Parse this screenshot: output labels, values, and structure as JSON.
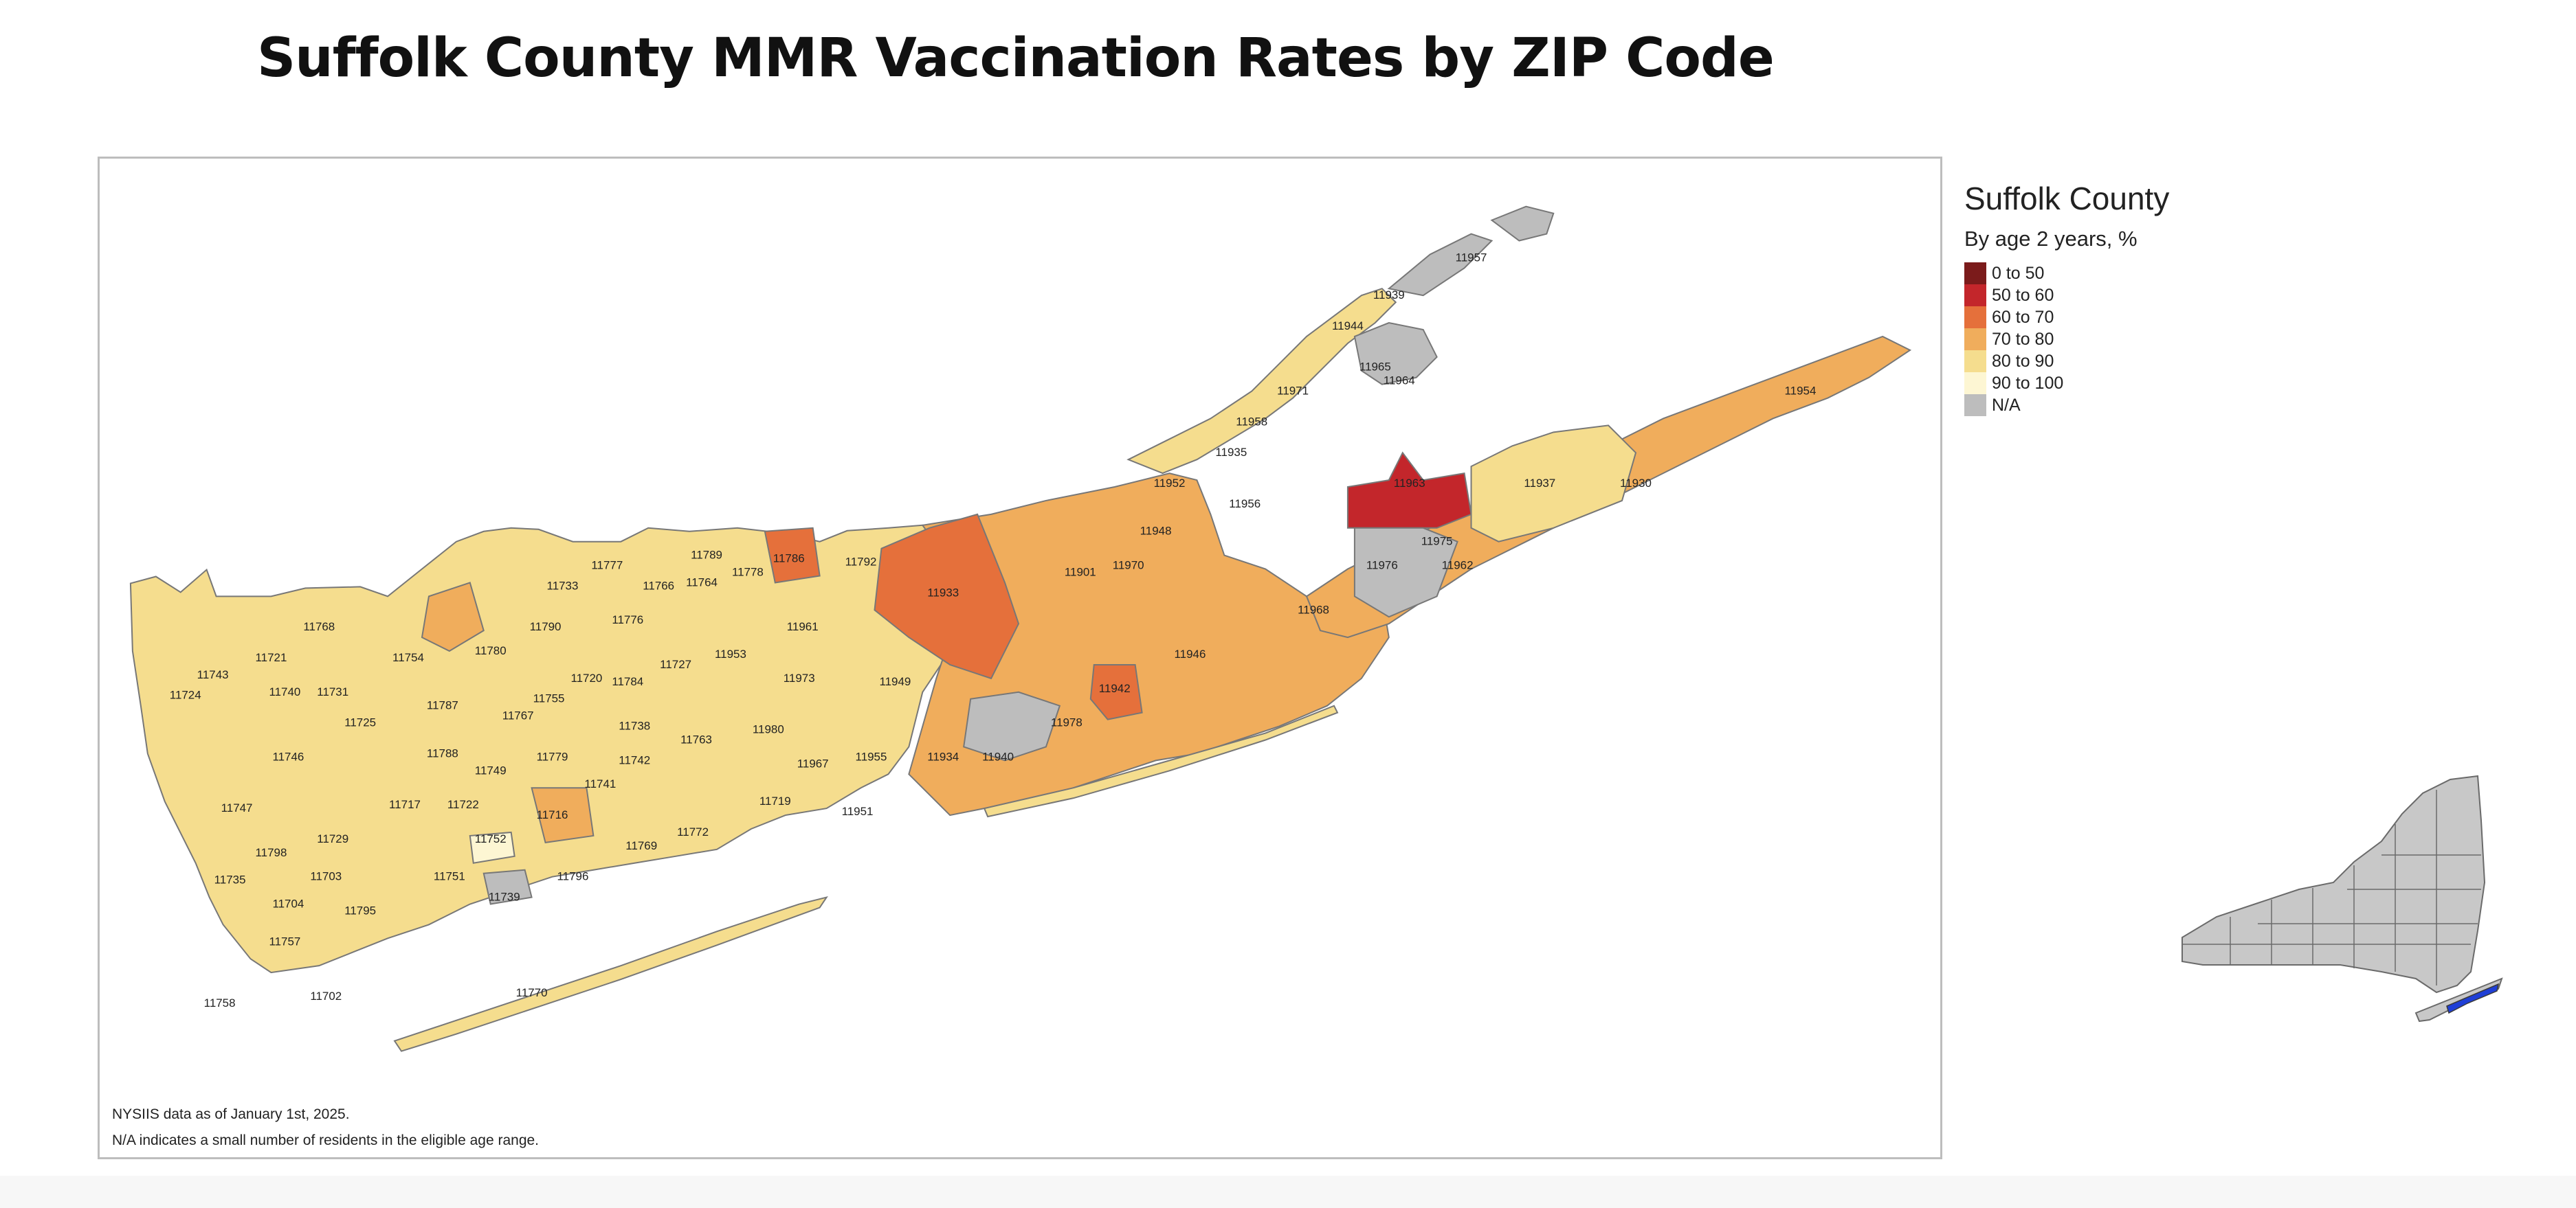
{
  "title": "Suffolk County MMR Vaccination Rates by ZIP Code",
  "legend": {
    "title": "Suffolk County",
    "subtitle": "By age 2 years, %",
    "items": [
      {
        "label": "0 to 50",
        "color": "#7b1b1b"
      },
      {
        "label": "50 to 60",
        "color": "#c3262b"
      },
      {
        "label": "60 to 70",
        "color": "#e5703b"
      },
      {
        "label": "70 to 80",
        "color": "#f0ad5c"
      },
      {
        "label": "80 to 90",
        "color": "#f5dd8e"
      },
      {
        "label": "90 to 100",
        "color": "#fdf6d3"
      },
      {
        "label": "N/A",
        "color": "#bdbdbd"
      }
    ]
  },
  "notes": {
    "data_date": "NYSIIS data as of January 1st, 2025.",
    "na_note": "N/A indicates a small number of residents in the eligible age range."
  },
  "inset": {
    "highlight_color": "#1f3fd6"
  },
  "zip_labels": [
    {
      "zip": "11957",
      "bin": "N/A"
    },
    {
      "zip": "11939",
      "bin": "N/A"
    },
    {
      "zip": "11944",
      "bin": "70 to 80"
    },
    {
      "zip": "11965",
      "bin": "N/A"
    },
    {
      "zip": "11964",
      "bin": "N/A"
    },
    {
      "zip": "11971",
      "bin": "70 to 80"
    },
    {
      "zip": "11958",
      "bin": "N/A"
    },
    {
      "zip": "11954",
      "bin": "70 to 80"
    },
    {
      "zip": "11935",
      "bin": "80 to 90"
    },
    {
      "zip": "11952",
      "bin": "80 to 90"
    },
    {
      "zip": "11956",
      "bin": "N/A"
    },
    {
      "zip": "11948",
      "bin": "N/A"
    },
    {
      "zip": "11937",
      "bin": "80 to 90"
    },
    {
      "zip": "11930",
      "bin": "N/A"
    },
    {
      "zip": "11963",
      "bin": "50 to 60"
    },
    {
      "zip": "11976",
      "bin": "N/A"
    },
    {
      "zip": "11962",
      "bin": "N/A"
    },
    {
      "zip": "11975",
      "bin": "N/A"
    },
    {
      "zip": "11968",
      "bin": "70 to 80"
    },
    {
      "zip": "11901",
      "bin": "70 to 80"
    },
    {
      "zip": "11970",
      "bin": "N/A"
    },
    {
      "zip": "11933",
      "bin": "60 to 70"
    },
    {
      "zip": "11946",
      "bin": "70 to 80"
    },
    {
      "zip": "11942",
      "bin": "60 to 70"
    },
    {
      "zip": "11978",
      "bin": "70 to 80"
    },
    {
      "zip": "11940",
      "bin": "N/A"
    },
    {
      "zip": "11949",
      "bin": "70 to 80"
    },
    {
      "zip": "11789",
      "bin": "80 to 90"
    },
    {
      "zip": "11786",
      "bin": "60 to 70"
    },
    {
      "zip": "11792",
      "bin": "80 to 90"
    },
    {
      "zip": "11778",
      "bin": "80 to 90"
    },
    {
      "zip": "11777",
      "bin": "70 to 80"
    },
    {
      "zip": "11766",
      "bin": "80 to 90"
    },
    {
      "zip": "11764",
      "bin": "80 to 90"
    },
    {
      "zip": "11733",
      "bin": "80 to 90"
    },
    {
      "zip": "11961",
      "bin": "80 to 90"
    },
    {
      "zip": "11953",
      "bin": "70 to 80"
    },
    {
      "zip": "11973",
      "bin": "N/A"
    },
    {
      "zip": "11980",
      "bin": "70 to 80"
    },
    {
      "zip": "11967",
      "bin": "70 to 80"
    },
    {
      "zip": "11955",
      "bin": "70 to 80"
    },
    {
      "zip": "11934",
      "bin": "80 to 90"
    },
    {
      "zip": "11719",
      "bin": "70 to 80"
    },
    {
      "zip": "11951",
      "bin": "70 to 80"
    },
    {
      "zip": "11772",
      "bin": "80 to 90"
    },
    {
      "zip": "11763",
      "bin": "80 to 90"
    },
    {
      "zip": "11742",
      "bin": "80 to 90"
    },
    {
      "zip": "11741",
      "bin": "80 to 90"
    },
    {
      "zip": "11738",
      "bin": "80 to 90"
    },
    {
      "zip": "11784",
      "bin": "80 to 90"
    },
    {
      "zip": "11727",
      "bin": "80 to 90"
    },
    {
      "zip": "11720",
      "bin": "80 to 90"
    },
    {
      "zip": "11755",
      "bin": "80 to 90"
    },
    {
      "zip": "11776",
      "bin": "80 to 90"
    },
    {
      "zip": "11790",
      "bin": "80 to 90"
    },
    {
      "zip": "11754",
      "bin": "80 to 90"
    },
    {
      "zip": "11780",
      "bin": "70 to 80"
    },
    {
      "zip": "11768",
      "bin": "80 to 90"
    },
    {
      "zip": "11787",
      "bin": "80 to 90"
    },
    {
      "zip": "11767",
      "bin": "80 to 90"
    },
    {
      "zip": "11788",
      "bin": "80 to 90"
    },
    {
      "zip": "11749",
      "bin": "80 to 90"
    },
    {
      "zip": "11779",
      "bin": "80 to 90"
    },
    {
      "zip": "11716",
      "bin": "70 to 80"
    },
    {
      "zip": "11769",
      "bin": "70 to 80"
    },
    {
      "zip": "11796",
      "bin": "80 to 90"
    },
    {
      "zip": "11752",
      "bin": "90 to 100"
    },
    {
      "zip": "11739",
      "bin": "N/A"
    },
    {
      "zip": "11751",
      "bin": "80 to 90"
    },
    {
      "zip": "11722",
      "bin": "80 to 90"
    },
    {
      "zip": "11717",
      "bin": "80 to 90"
    },
    {
      "zip": "11725",
      "bin": "80 to 90"
    },
    {
      "zip": "11731",
      "bin": "80 to 90"
    },
    {
      "zip": "11740",
      "bin": "80 to 90"
    },
    {
      "zip": "11721",
      "bin": "80 to 90"
    },
    {
      "zip": "11743",
      "bin": "80 to 90"
    },
    {
      "zip": "11724",
      "bin": "80 to 90"
    },
    {
      "zip": "11746",
      "bin": "80 to 90"
    },
    {
      "zip": "11747",
      "bin": "80 to 90"
    },
    {
      "zip": "11729",
      "bin": "80 to 90"
    },
    {
      "zip": "11798",
      "bin": "80 to 90"
    },
    {
      "zip": "11703",
      "bin": "80 to 90"
    },
    {
      "zip": "11735",
      "bin": "80 to 90"
    },
    {
      "zip": "11704",
      "bin": "80 to 90"
    },
    {
      "zip": "11795",
      "bin": "80 to 90"
    },
    {
      "zip": "11757",
      "bin": "80 to 90"
    },
    {
      "zip": "11758",
      "bin": "80 to 90"
    },
    {
      "zip": "11702",
      "bin": "80 to 90"
    },
    {
      "zip": "11770",
      "bin": "80 to 90"
    }
  ]
}
